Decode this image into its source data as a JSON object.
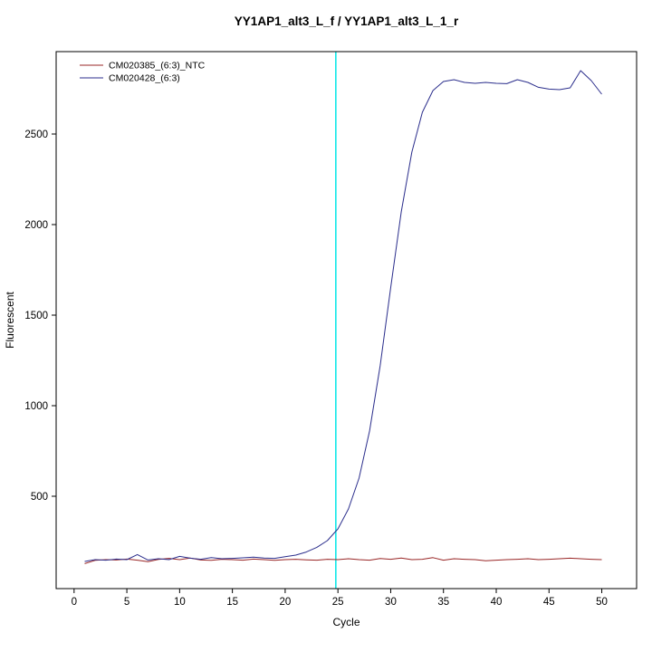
{
  "chart_data": {
    "type": "line",
    "title": "YY1AP1_alt3_L_f / YY1AP1_alt3_L_1_r",
    "xlabel": "Cycle",
    "ylabel": "Fluorescent",
    "xlim": [
      -1.7,
      53.3
    ],
    "ylim": [
      -10,
      2955
    ],
    "x_ticks": [
      0,
      5,
      10,
      15,
      20,
      25,
      30,
      35,
      40,
      45,
      50
    ],
    "y_ticks": [
      500,
      1000,
      1500,
      2000,
      2500
    ],
    "grid": false,
    "legend_position": "top-left",
    "threshold_line": {
      "x": 24.8,
      "color": "#00e6e6"
    },
    "x": [
      1,
      2,
      3,
      4,
      5,
      6,
      7,
      8,
      9,
      10,
      11,
      12,
      13,
      14,
      15,
      16,
      17,
      18,
      19,
      20,
      21,
      22,
      23,
      24,
      25,
      26,
      27,
      28,
      29,
      30,
      31,
      32,
      33,
      34,
      35,
      36,
      37,
      38,
      39,
      40,
      41,
      42,
      43,
      44,
      45,
      46,
      47,
      48,
      49,
      50
    ],
    "series": [
      {
        "name": "CM020385_(6:3)_NTC",
        "color": "#992626",
        "values": [
          128,
          146,
          150,
          148,
          153,
          147,
          139,
          151,
          157,
          150,
          159,
          148,
          146,
          152,
          150,
          147,
          153,
          150,
          146,
          150,
          152,
          149,
          147,
          152,
          150,
          155,
          150,
          147,
          156,
          152,
          159,
          150,
          152,
          161,
          147,
          155,
          152,
          150,
          144,
          147,
          150,
          152,
          155,
          150,
          152,
          155,
          158,
          155,
          152,
          150
        ]
      },
      {
        "name": "CM020428_(6:3)",
        "color": "#2b2e8c",
        "values": [
          140,
          150,
          147,
          153,
          150,
          178,
          148,
          155,
          150,
          168,
          158,
          152,
          161,
          155,
          157,
          160,
          164,
          159,
          157,
          166,
          175,
          192,
          218,
          255,
          320,
          430,
          600,
          860,
          1220,
          1650,
          2070,
          2400,
          2620,
          2740,
          2790,
          2800,
          2785,
          2780,
          2785,
          2780,
          2778,
          2800,
          2785,
          2758,
          2748,
          2745,
          2755,
          2850,
          2795,
          2720
        ]
      }
    ]
  }
}
